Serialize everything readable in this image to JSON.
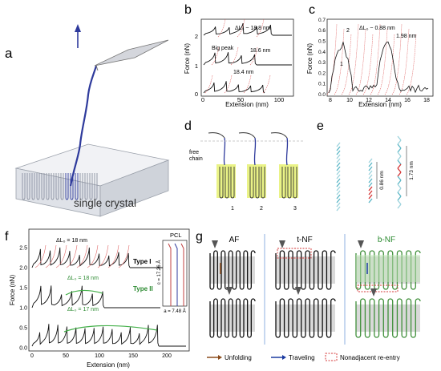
{
  "panels": {
    "a": {
      "letter": "a",
      "label": "single crystal"
    },
    "b": {
      "letter": "b",
      "ylabel": "Force (nN)",
      "xlabel": "Extension (nm)",
      "yticks": [
        "0",
        "1",
        "2"
      ],
      "xticks": [
        "0",
        "50",
        "100"
      ],
      "annotations": [
        "ΔL₀ ~ 18.8 nm",
        "Big peak",
        "18.6 nm",
        "18.4 nm"
      ]
    },
    "c": {
      "letter": "c",
      "ylabel": "Force (nN)",
      "xlabel": "Extension (nm)",
      "yticks": [
        "0.0",
        "0.1",
        "0.2",
        "0.3",
        "0.4",
        "0.5",
        "0.6",
        "0.7"
      ],
      "xticks": [
        "8",
        "10",
        "12",
        "14",
        "16",
        "18"
      ],
      "annotations": [
        "ΔL₀ ~ 0.88 nm",
        "1.98 nm",
        "2",
        "1"
      ]
    },
    "d": {
      "letter": "d",
      "free_chain_label": "free\nchain",
      "stage_labels": [
        "1",
        "2",
        "3"
      ]
    },
    "e": {
      "letter": "e",
      "dims": [
        "0.86 nm",
        "1.73 nm"
      ]
    },
    "f": {
      "letter": "f",
      "ylabel": "Force (nN)",
      "xlabel": "Extension (nm)",
      "yticks": [
        "0.0",
        "0.5",
        "1.0",
        "1.5",
        "2.0",
        "2.5"
      ],
      "xticks": [
        "0",
        "50",
        "100",
        "150",
        "200"
      ],
      "annotations": [
        "ΔL₀ = 18 nm",
        "ΔL₀ = 18 nm",
        "ΔL₀ = 17 nm"
      ],
      "type_labels": [
        "Type I",
        "Type II"
      ],
      "inset": {
        "title": "PCL",
        "c_label": "c = 17.26 Å",
        "a_label": "a = 7.48 Å"
      }
    },
    "g": {
      "letter": "g",
      "columns": [
        "AF",
        "t-NF",
        "b-NF"
      ],
      "legend": [
        "Unfolding",
        "Traveling",
        "Nonadjacent re-entry"
      ]
    }
  },
  "colors": {
    "crystal_fill": "#e7e9ee",
    "chain": "#2e3a9c",
    "wlc_fit": "#e06666",
    "type2": "#44b04a",
    "highlight": "#e8f27a",
    "arrow_brown": "#8a4a1a",
    "arrow_blue": "#1a3aa0",
    "dashed_red": "#d63a3a"
  }
}
